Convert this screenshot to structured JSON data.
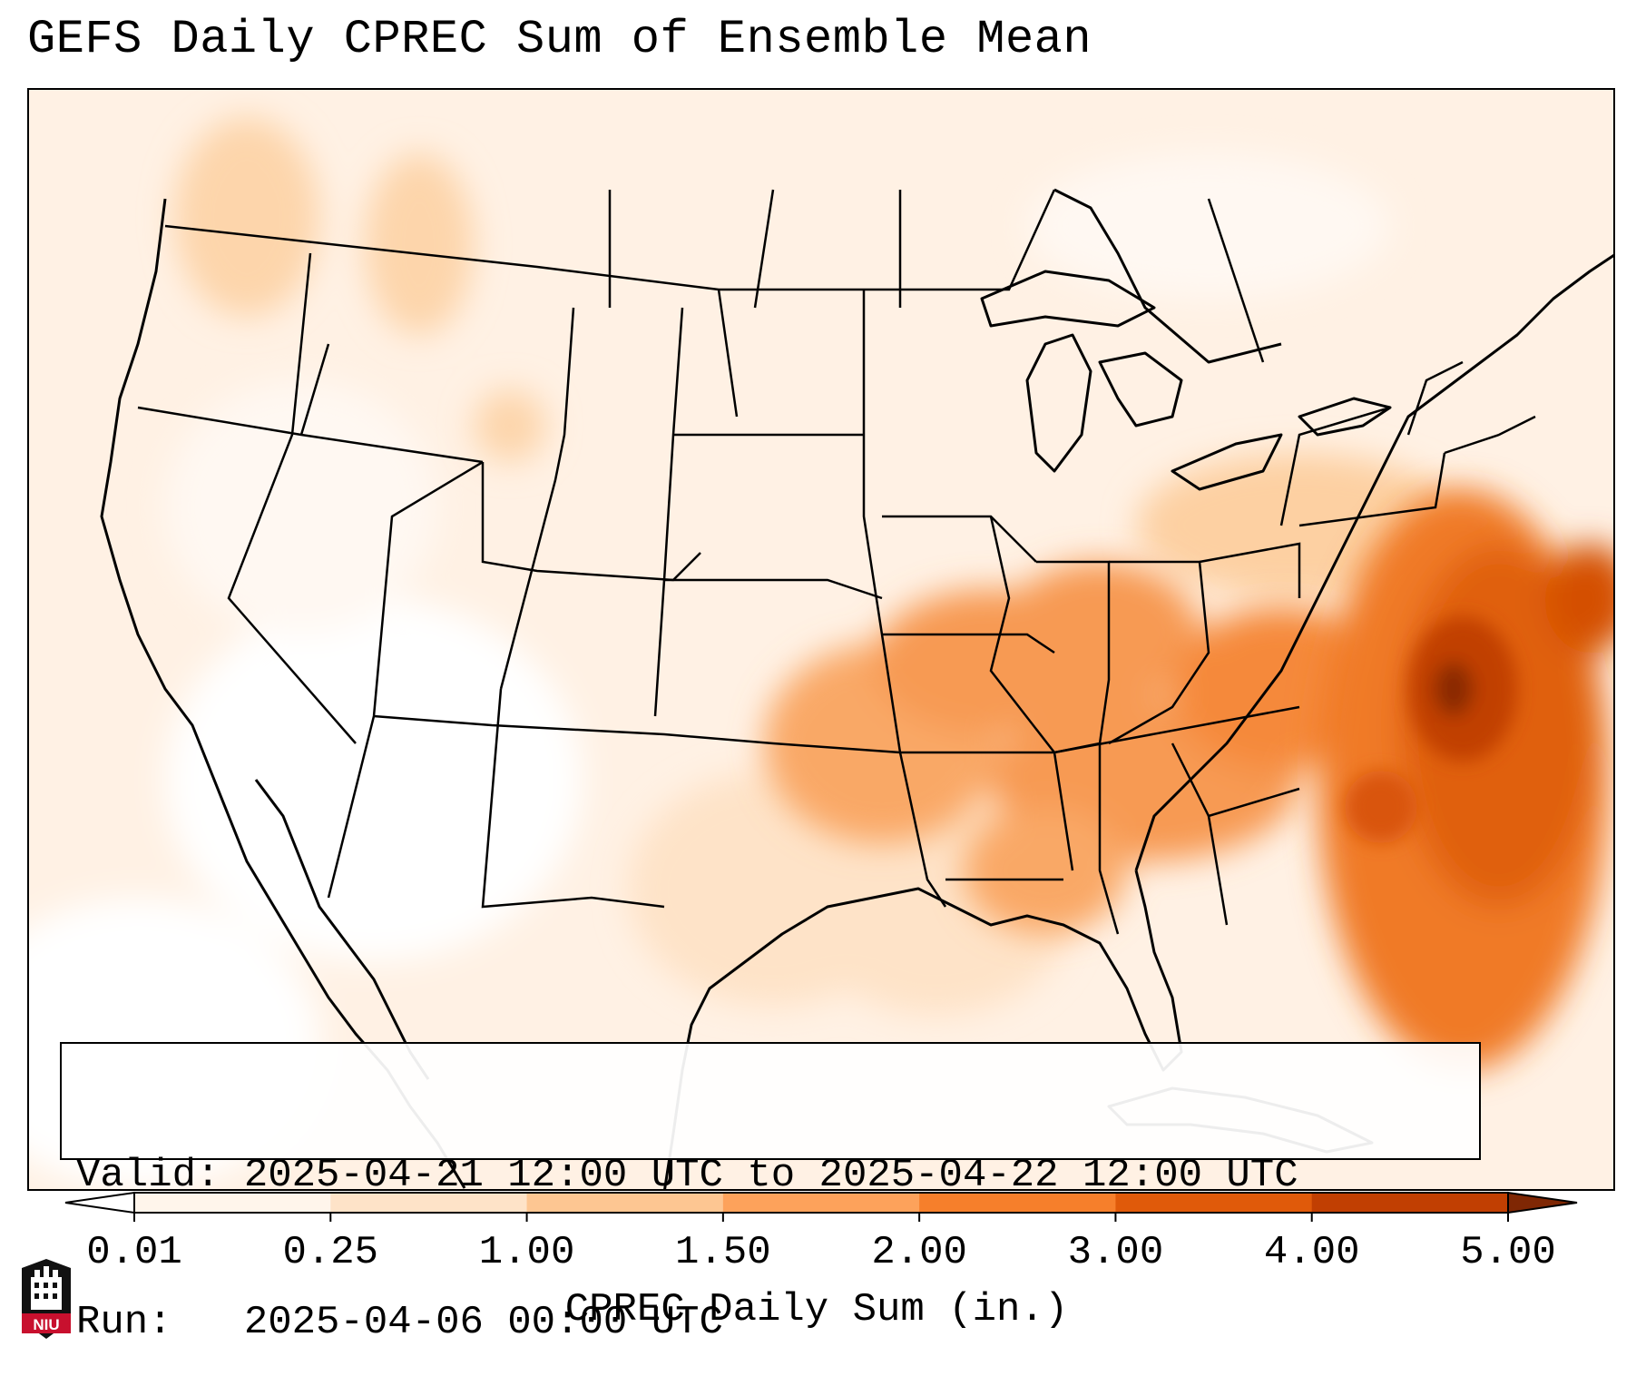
{
  "title": "GEFS Daily CPREC Sum of Ensemble Mean",
  "valid_line": "Valid: 2025-04-21 12:00 UTC to 2025-04-22 12:00 UTC",
  "run_line": "Run:   2025-04-06 00:00 UTC",
  "colorbar": {
    "label": "CPREC Daily Sum (in.)",
    "ticks": [
      "0.01",
      "0.25",
      "1.00",
      "1.50",
      "2.00",
      "3.00",
      "4.00",
      "5.00"
    ],
    "colors": [
      "#fff5eb",
      "#fee3c8",
      "#fdc692",
      "#fda25b",
      "#f67f2b",
      "#e05a0a",
      "#c13f02",
      "#8a2a03"
    ]
  },
  "logo_text": "NIU",
  "colors": {
    "under_color": "#ffffff",
    "over_color": "#7f2704",
    "state_lines": "#000000"
  }
}
